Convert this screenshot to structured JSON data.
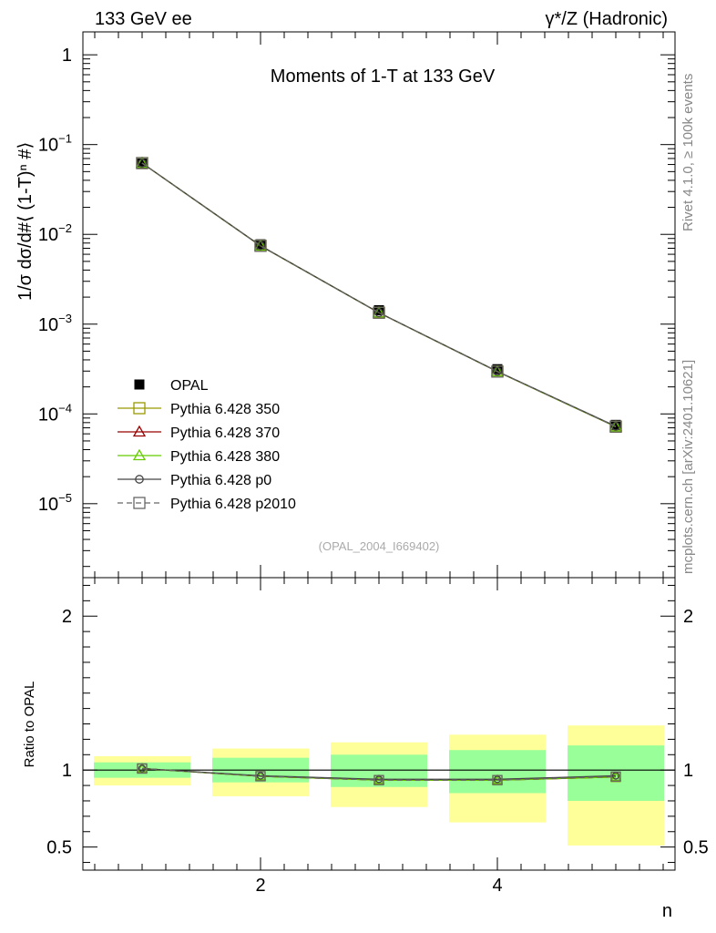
{
  "header": {
    "left": "133 GeV ee",
    "right": "γ*/Z (Hadronic)"
  },
  "side_labels": {
    "rivet": "Rivet 4.1.0, ≥ 100k events",
    "mcplots": "mcplots.cern.ch [arXiv:2401.10621]"
  },
  "chart_data": [
    {
      "type": "line",
      "title": "Moments of 1-T at 133 GeV",
      "ylabel": "1/σ  dσ/d#⟨ (1-T)ⁿ #⟩",
      "yscale": "log",
      "ylim": [
        1.5e-06,
        1.8
      ],
      "xlim": [
        0.5,
        5.5
      ],
      "yticks": [
        {
          "value": 1e-05,
          "base": "10",
          "exp": "−5"
        },
        {
          "value": 0.0001,
          "base": "10",
          "exp": "−4"
        },
        {
          "value": 0.001,
          "base": "10",
          "exp": "−3"
        },
        {
          "value": 0.01,
          "base": "10",
          "exp": "−2"
        },
        {
          "value": 0.1,
          "base": "10",
          "exp": "−1"
        },
        {
          "value": 1,
          "base": "1",
          "exp": ""
        }
      ],
      "reference_label": "(OPAL_2004_I669402)",
      "x": [
        1,
        2,
        3,
        4,
        5
      ],
      "data": {
        "name": "OPAL",
        "values": [
          0.0615,
          0.00775,
          0.00143,
          0.000315,
          7.55e-05
        ],
        "errors_rel": [
          0.02,
          0.03,
          0.05,
          0.07,
          0.09
        ]
      },
      "series": [
        {
          "name": "Pythia 6.428 350",
          "color": "#999900",
          "marker": "square-open",
          "dash": "",
          "values": [
            0.0622,
            0.00745,
            0.00134,
            0.000296,
            7.2e-05
          ]
        },
        {
          "name": "Pythia 6.428 370",
          "color": "#990000",
          "marker": "triangle-open",
          "dash": "",
          "values": [
            0.0622,
            0.00745,
            0.00134,
            0.000296,
            7.2e-05
          ]
        },
        {
          "name": "Pythia 6.428 380",
          "color": "#66cc00",
          "marker": "triangle-open",
          "dash": "",
          "values": [
            0.0622,
            0.00745,
            0.00134,
            0.000296,
            7.2e-05
          ]
        },
        {
          "name": "Pythia 6.428 p0",
          "color": "#444444",
          "marker": "circle-open",
          "dash": "",
          "values": [
            0.0622,
            0.00747,
            0.00134,
            0.000298,
            7.28e-05
          ]
        },
        {
          "name": "Pythia 6.428 p2010",
          "color": "#666666",
          "marker": "square-open",
          "dash": "6,4",
          "values": [
            0.0622,
            0.00745,
            0.00134,
            0.000296,
            7.22e-05
          ]
        }
      ]
    },
    {
      "type": "line",
      "title": "",
      "ylabel": "Ratio to OPAL",
      "xlabel": "n",
      "ylim": [
        0.35,
        2.25
      ],
      "xlim": [
        0.5,
        5.5
      ],
      "xticks": [
        "2",
        "4"
      ],
      "yticks": [
        "0.5",
        "1",
        "2"
      ],
      "bins": [
        [
          0.5,
          1.5
        ],
        [
          1.5,
          2.5
        ],
        [
          2.5,
          3.5
        ],
        [
          3.5,
          4.5
        ],
        [
          4.5,
          5.5
        ]
      ],
      "band_inner": [
        [
          0.95,
          1.05
        ],
        [
          0.92,
          1.08
        ],
        [
          0.89,
          1.1
        ],
        [
          0.85,
          1.13
        ],
        [
          0.8,
          1.16
        ]
      ],
      "band_outer": [
        [
          0.9,
          1.09
        ],
        [
          0.83,
          1.14
        ],
        [
          0.76,
          1.18
        ],
        [
          0.66,
          1.23
        ],
        [
          0.51,
          1.29
        ]
      ],
      "series_ratio": [
        {
          "name": "Pythia 6.428 350",
          "values": [
            1.01,
            0.96,
            0.935,
            0.935,
            0.955
          ]
        },
        {
          "name": "Pythia 6.428 370",
          "values": [
            1.01,
            0.96,
            0.935,
            0.935,
            0.955
          ]
        },
        {
          "name": "Pythia 6.428 380",
          "values": [
            1.01,
            0.96,
            0.935,
            0.935,
            0.955
          ]
        },
        {
          "name": "Pythia 6.428 p0",
          "values": [
            1.01,
            0.963,
            0.94,
            0.94,
            0.963
          ]
        },
        {
          "name": "Pythia 6.428 p2010",
          "values": [
            1.01,
            0.96,
            0.935,
            0.935,
            0.958
          ]
        }
      ]
    }
  ],
  "colors": {
    "band_inner": "#99ff99",
    "band_outer": "#ffff99"
  }
}
